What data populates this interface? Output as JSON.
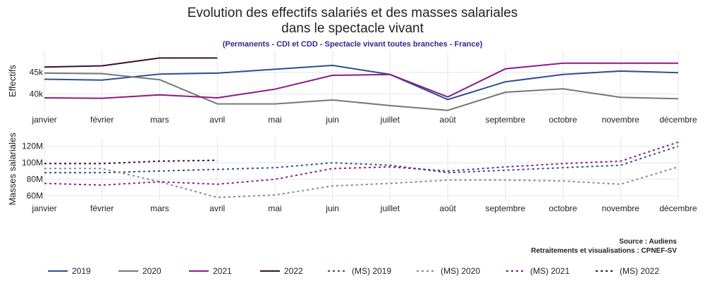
{
  "chart_data": {
    "title_line1": "Evolution des effectifs salariés et des masses salariales",
    "title_line2": "dans le spectacle vivant",
    "subtitle": "(Permanents - CDI et CDD - Spectacle vivant toutes branches - France)",
    "source_line1": "Source : Audiens",
    "source_line2": "Retraitements et visualisations : CPNEF-SV",
    "months": [
      "janvier",
      "février",
      "mars",
      "avril",
      "mai",
      "juin",
      "juillet",
      "août",
      "septembre",
      "octobre",
      "novembre",
      "décembre"
    ],
    "charts": [
      {
        "type": "line",
        "ylabel": "Effectifs",
        "ylim": [
          36,
          50
        ],
        "yticks": [
          40,
          45
        ],
        "ytick_labels": [
          "40k",
          "45k"
        ],
        "series": [
          {
            "name": "2019",
            "color": "#2e4f8f",
            "dash": false,
            "values": [
              43.4,
              43.2,
              44.6,
              44.8,
              45.7,
              46.6,
              44.5,
              38.7,
              42.8,
              44.5,
              45.3,
              44.9
            ]
          },
          {
            "name": "2020",
            "color": "#777777",
            "dash": false,
            "values": [
              44.8,
              44.7,
              43.3,
              37.7,
              37.7,
              38.6,
              37.3,
              36.2,
              40.4,
              41.2,
              39.2,
              38.9
            ]
          },
          {
            "name": "2021",
            "color": "#8b1a8b",
            "dash": false,
            "values": [
              39.1,
              39.0,
              39.8,
              39.1,
              41.1,
              44.3,
              44.5,
              39.3,
              45.8,
              47.1,
              47.1,
              47.1
            ]
          },
          {
            "name": "2022",
            "color": "#3d0f2e",
            "dash": false,
            "values": [
              46.2,
              46.5,
              48.3,
              48.3
            ]
          }
        ]
      },
      {
        "type": "line",
        "ylabel": "Masses salariales",
        "ylim": [
          55,
          130
        ],
        "yticks": [
          60,
          80,
          100,
          120
        ],
        "ytick_labels": [
          "60M",
          "80M",
          "100M",
          "120M"
        ],
        "series": [
          {
            "name": "(MS) 2019",
            "color": "#2e4f8f",
            "dash": true,
            "values": [
              88,
              88,
              90,
              92,
              94,
              100,
              97,
              88,
              91,
              94,
              97,
              120
            ]
          },
          {
            "name": "(MS) 2020",
            "color": "#888888",
            "dash": true,
            "values": [
              93,
              93,
              77,
              58,
              61,
              72,
              75,
              79,
              79,
              78,
              74,
              95
            ]
          },
          {
            "name": "(MS) 2021",
            "color": "#8b1a8b",
            "dash": true,
            "values": [
              75,
              73,
              77,
              74,
              80,
              93,
              95,
              90,
              95,
              99,
              102,
              125
            ]
          },
          {
            "name": "(MS) 2022",
            "color": "#3d0f2e",
            "dash": true,
            "values": [
              99,
              99,
              102,
              103
            ]
          }
        ]
      }
    ],
    "legend": [
      {
        "label": "2019",
        "color": "#2e4f8f",
        "dash": false
      },
      {
        "label": "2020",
        "color": "#777777",
        "dash": false
      },
      {
        "label": "2021",
        "color": "#8b1a8b",
        "dash": false
      },
      {
        "label": "2022",
        "color": "#3d0f2e",
        "dash": false
      },
      {
        "label": "(MS) 2019",
        "color": "#2e4f8f",
        "dash": true
      },
      {
        "label": "(MS) 2020",
        "color": "#888888",
        "dash": true
      },
      {
        "label": "(MS) 2021",
        "color": "#8b1a8b",
        "dash": true
      },
      {
        "label": "(MS) 2022",
        "color": "#3d0f2e",
        "dash": true
      }
    ]
  }
}
